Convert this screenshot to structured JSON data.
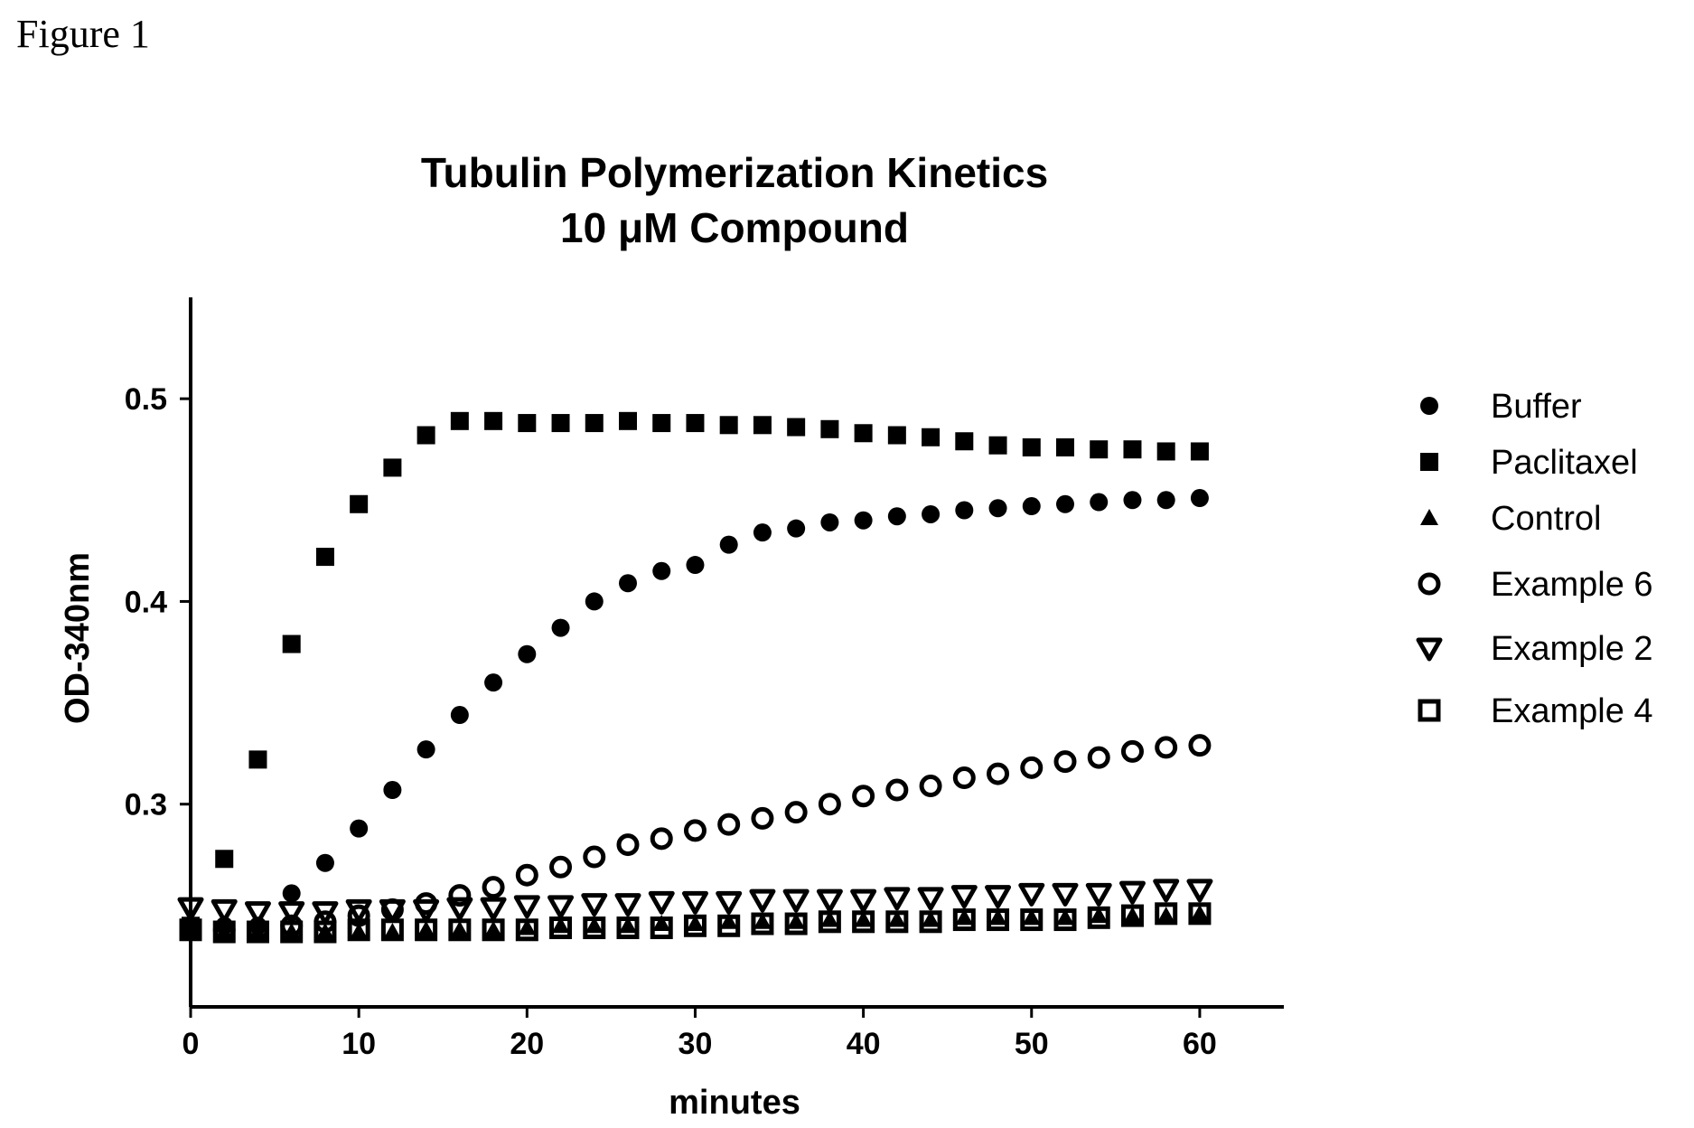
{
  "figure_label": "Figure 1",
  "chart_data": {
    "type": "scatter",
    "title": "Tubulin Polymerization Kinetics",
    "subtitle": "10 μM Compound",
    "xlabel": "minutes",
    "ylabel": "OD-340nm",
    "xlim": [
      0,
      65
    ],
    "ylim": [
      0.2,
      0.55
    ],
    "xticks": [
      0,
      10,
      20,
      30,
      40,
      50,
      60
    ],
    "yticks": [
      0.3,
      0.4,
      0.5
    ],
    "ytick_labels": [
      "0.3",
      "0.4",
      "0.5"
    ],
    "grid": false,
    "legend_position": "right",
    "x": [
      0,
      2,
      4,
      6,
      8,
      10,
      12,
      14,
      16,
      18,
      20,
      22,
      24,
      26,
      28,
      30,
      32,
      34,
      36,
      38,
      40,
      42,
      44,
      46,
      48,
      50,
      52,
      54,
      56,
      58,
      60
    ],
    "series": [
      {
        "name": "Buffer",
        "marker": "circle-filled",
        "values": [
          0.24,
          0.24,
          0.24,
          0.256,
          0.271,
          0.288,
          0.307,
          0.327,
          0.344,
          0.36,
          0.374,
          0.387,
          0.4,
          0.409,
          0.415,
          0.418,
          0.428,
          0.434,
          0.436,
          0.439,
          0.44,
          0.442,
          0.443,
          0.445,
          0.446,
          0.447,
          0.448,
          0.449,
          0.45,
          0.45,
          0.451
        ]
      },
      {
        "name": "Paclitaxel",
        "marker": "square-filled",
        "values": [
          0.24,
          0.273,
          0.322,
          0.379,
          0.422,
          0.448,
          0.466,
          0.482,
          0.489,
          0.489,
          0.488,
          0.488,
          0.488,
          0.489,
          0.488,
          0.488,
          0.487,
          0.487,
          0.486,
          0.485,
          0.483,
          0.482,
          0.481,
          0.479,
          0.477,
          0.476,
          0.476,
          0.475,
          0.475,
          0.474,
          0.474
        ]
      },
      {
        "name": "Control",
        "marker": "triangle-up-filled",
        "values": [
          0.238,
          0.237,
          0.237,
          0.237,
          0.237,
          0.237,
          0.237,
          0.238,
          0.238,
          0.238,
          0.239,
          0.24,
          0.24,
          0.24,
          0.241,
          0.241,
          0.242,
          0.242,
          0.242,
          0.243,
          0.243,
          0.243,
          0.243,
          0.244,
          0.244,
          0.244,
          0.244,
          0.245,
          0.245,
          0.245,
          0.246
        ]
      },
      {
        "name": "Example 6",
        "marker": "circle-open",
        "values": [
          0.238,
          0.238,
          0.238,
          0.24,
          0.242,
          0.245,
          0.248,
          0.251,
          0.255,
          0.259,
          0.265,
          0.269,
          0.274,
          0.28,
          0.283,
          0.287,
          0.29,
          0.293,
          0.296,
          0.3,
          0.304,
          0.307,
          0.309,
          0.313,
          0.315,
          0.318,
          0.321,
          0.323,
          0.326,
          0.328,
          0.329
        ]
      },
      {
        "name": "Example 2",
        "marker": "triangle-down-open",
        "values": [
          0.249,
          0.248,
          0.247,
          0.247,
          0.247,
          0.248,
          0.248,
          0.248,
          0.249,
          0.249,
          0.25,
          0.25,
          0.251,
          0.251,
          0.252,
          0.252,
          0.252,
          0.253,
          0.253,
          0.253,
          0.253,
          0.254,
          0.254,
          0.255,
          0.255,
          0.256,
          0.256,
          0.256,
          0.257,
          0.258,
          0.258
        ]
      },
      {
        "name": "Example 4",
        "marker": "square-open",
        "values": [
          0.238,
          0.237,
          0.237,
          0.237,
          0.237,
          0.238,
          0.238,
          0.238,
          0.238,
          0.238,
          0.238,
          0.239,
          0.239,
          0.239,
          0.239,
          0.24,
          0.24,
          0.241,
          0.241,
          0.242,
          0.242,
          0.242,
          0.242,
          0.243,
          0.243,
          0.243,
          0.243,
          0.244,
          0.245,
          0.246,
          0.246
        ]
      }
    ]
  }
}
